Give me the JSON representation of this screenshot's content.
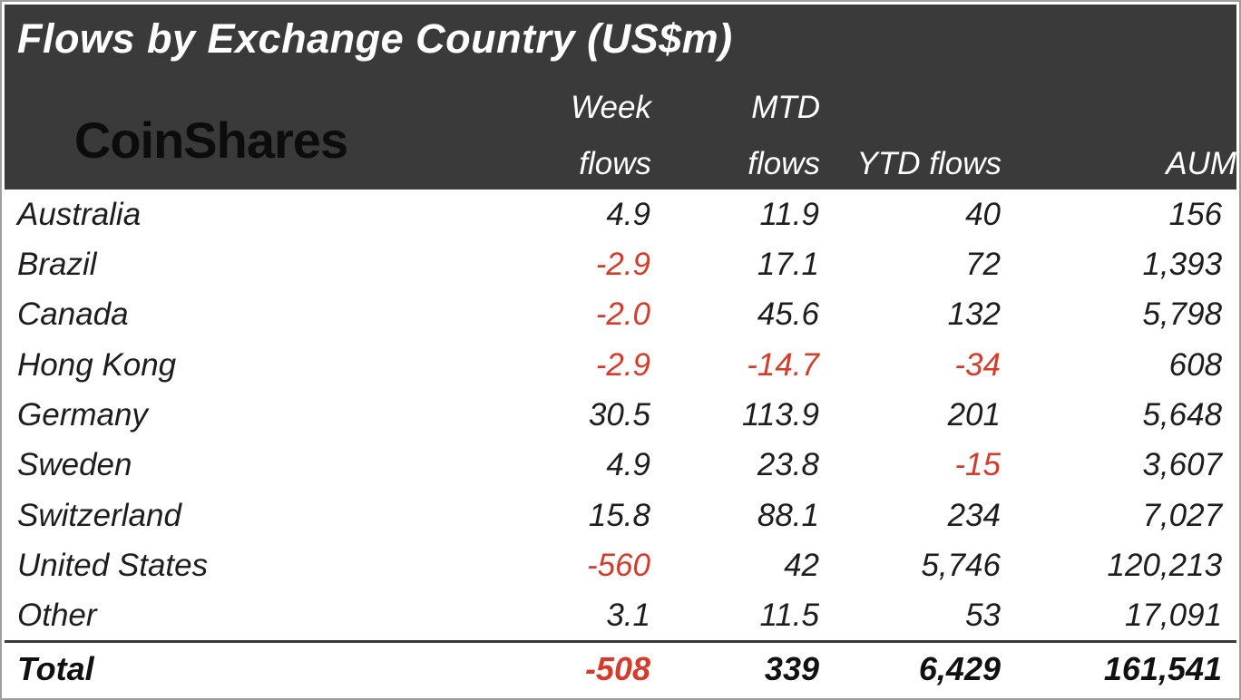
{
  "title": "Flows by Exchange Country (US$m)",
  "logo": "CoinShares",
  "columns": {
    "week": {
      "line1": "Week",
      "line2": "flows"
    },
    "mtd": {
      "line1": "MTD",
      "line2": "flows"
    },
    "ytd": {
      "line1": "",
      "line2": "YTD flows"
    },
    "aum": {
      "line1": "",
      "line2": "AUM"
    }
  },
  "rows": [
    {
      "country": "Australia",
      "week": "4.9",
      "mtd": "11.9",
      "ytd": "40",
      "aum": "156"
    },
    {
      "country": "Brazil",
      "week": "-2.9",
      "mtd": "17.1",
      "ytd": "72",
      "aum": "1,393"
    },
    {
      "country": "Canada",
      "week": "-2.0",
      "mtd": "45.6",
      "ytd": "132",
      "aum": "5,798"
    },
    {
      "country": "Hong Kong",
      "week": "-2.9",
      "mtd": "-14.7",
      "ytd": "-34",
      "aum": "608"
    },
    {
      "country": "Germany",
      "week": "30.5",
      "mtd": "113.9",
      "ytd": "201",
      "aum": "5,648"
    },
    {
      "country": "Sweden",
      "week": "4.9",
      "mtd": "23.8",
      "ytd": "-15",
      "aum": "3,607"
    },
    {
      "country": "Switzerland",
      "week": "15.8",
      "mtd": "88.1",
      "ytd": "234",
      "aum": "7,027"
    },
    {
      "country": "United States",
      "week": "-560",
      "mtd": "42",
      "ytd": "5,746",
      "aum": "120,213"
    },
    {
      "country": "Other",
      "week": "3.1",
      "mtd": "11.5",
      "ytd": "53",
      "aum": "17,091"
    }
  ],
  "total": {
    "label": "Total",
    "week": "-508",
    "mtd": "339",
    "ytd": "6,429",
    "aum": "161,541"
  },
  "colors": {
    "negative": "#d53a2a",
    "header_bg": "#3a3a3a",
    "body_text": "#1d1d1d",
    "title_text": "#ffffff",
    "logo_text": "#0c0c0c",
    "frame_border": "#9e9e9e",
    "total_rule": "#3a3a3a"
  },
  "chart_data": {
    "type": "table",
    "title": "Flows by Exchange Country (US$m)",
    "brand": "CoinShares",
    "units": "US$m",
    "columns": [
      "Country",
      "Week flows",
      "MTD flows",
      "YTD flows",
      "AUM"
    ],
    "rows": [
      [
        "Australia",
        4.9,
        11.9,
        40,
        156
      ],
      [
        "Brazil",
        -2.9,
        17.1,
        72,
        1393
      ],
      [
        "Canada",
        -2.0,
        45.6,
        132,
        5798
      ],
      [
        "Hong Kong",
        -2.9,
        -14.7,
        -34,
        608
      ],
      [
        "Germany",
        30.5,
        113.9,
        201,
        5648
      ],
      [
        "Sweden",
        4.9,
        23.8,
        -15,
        3607
      ],
      [
        "Switzerland",
        15.8,
        88.1,
        234,
        7027
      ],
      [
        "United States",
        -560,
        42,
        5746,
        120213
      ],
      [
        "Other",
        3.1,
        11.5,
        53,
        17091
      ]
    ],
    "total": [
      "Total",
      -508,
      339,
      6429,
      161541
    ],
    "negative_values_shown_in_red": true
  }
}
